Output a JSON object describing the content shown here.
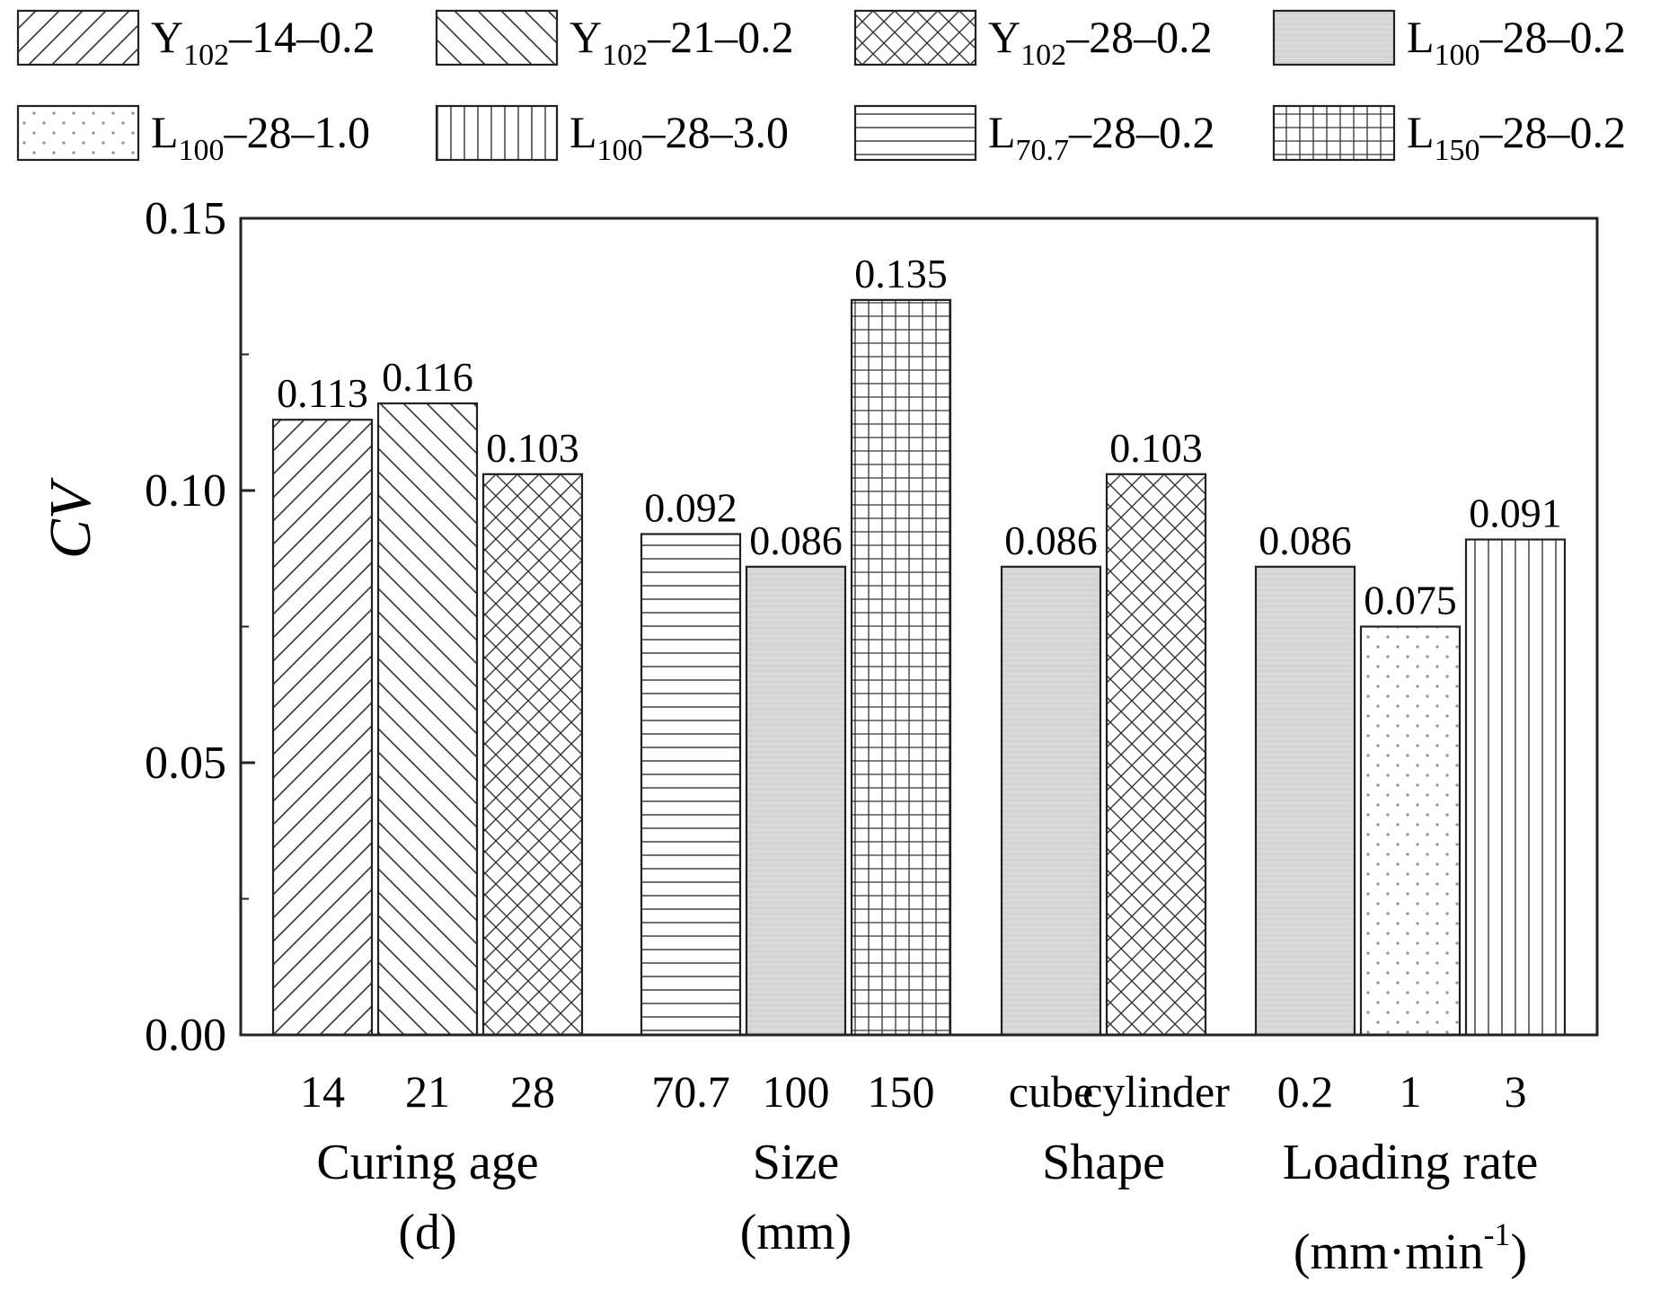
{
  "chart_data": {
    "type": "bar",
    "ylabel": "CV",
    "ylim": [
      0,
      0.15
    ],
    "yticks": [
      "0.00",
      "0.05",
      "0.10",
      "0.15"
    ],
    "legend": {
      "placement": "top",
      "entries": [
        {
          "pattern": "diag-up",
          "base": "Y",
          "sub": "102",
          "rest": "–14–0.2"
        },
        {
          "pattern": "diag-down",
          "base": "Y",
          "sub": "102",
          "rest": "–21–0.2"
        },
        {
          "pattern": "cross",
          "base": "Y",
          "sub": "102",
          "rest": "–28–0.2"
        },
        {
          "pattern": "gray",
          "base": "L",
          "sub": "100",
          "rest": "–28–0.2"
        },
        {
          "pattern": "dots",
          "base": "L",
          "sub": "100",
          "rest": "–28–1.0"
        },
        {
          "pattern": "vert",
          "base": "L",
          "sub": "100",
          "rest": "–28–3.0"
        },
        {
          "pattern": "horiz",
          "base": "L",
          "sub": "70.7",
          "rest": "–28–0.2"
        },
        {
          "pattern": "grid",
          "base": "L",
          "sub": "150",
          "rest": "–28–0.2"
        }
      ]
    },
    "groups": [
      {
        "label_lines": [
          "Curing age",
          "(d)"
        ],
        "bars": [
          {
            "category": "14",
            "value": 0.113,
            "label": "0.113",
            "pattern": "diag-up"
          },
          {
            "category": "21",
            "value": 0.116,
            "label": "0.116",
            "pattern": "diag-down"
          },
          {
            "category": "28",
            "value": 0.103,
            "label": "0.103",
            "pattern": "cross"
          }
        ]
      },
      {
        "label_lines": [
          "Size",
          "(mm)"
        ],
        "bars": [
          {
            "category": "70.7",
            "value": 0.092,
            "label": "0.092",
            "pattern": "horiz"
          },
          {
            "category": "100",
            "value": 0.086,
            "label": "0.086",
            "pattern": "gray"
          },
          {
            "category": "150",
            "value": 0.135,
            "label": "0.135",
            "pattern": "grid"
          }
        ]
      },
      {
        "label_lines": [
          "Shape"
        ],
        "bars": [
          {
            "category": "cube",
            "value": 0.086,
            "label": "0.086",
            "pattern": "gray"
          },
          {
            "category": "cylinder",
            "value": 0.103,
            "label": "0.103",
            "pattern": "cross"
          }
        ]
      },
      {
        "label_lines": [
          "Loading rate"
        ],
        "unit": {
          "open": "(mm·min",
          "sup": "-1",
          "close": ")"
        },
        "bars": [
          {
            "category": "0.2",
            "value": 0.086,
            "label": "0.086",
            "pattern": "gray"
          },
          {
            "category": "1",
            "value": 0.075,
            "label": "0.075",
            "pattern": "dots"
          },
          {
            "category": "3",
            "value": 0.091,
            "label": "0.091",
            "pattern": "vert"
          }
        ]
      }
    ]
  }
}
